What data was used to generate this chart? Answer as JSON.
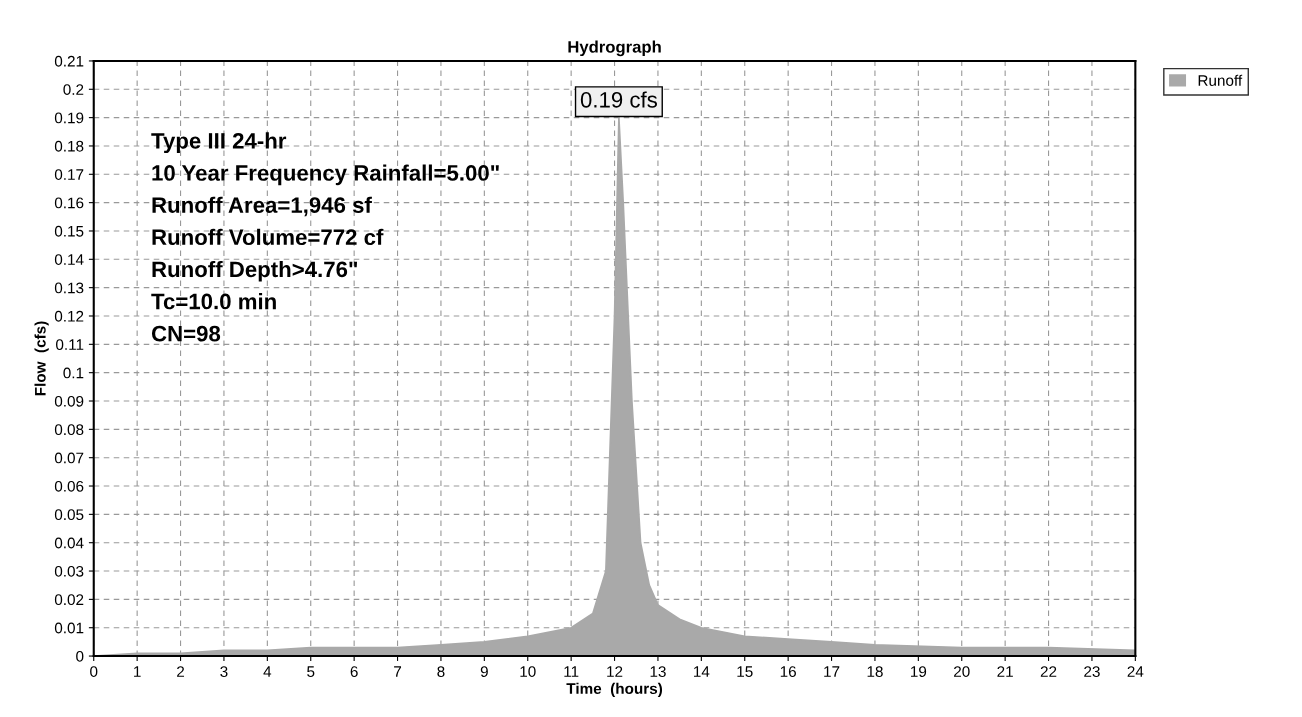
{
  "chart_data": {
    "type": "area",
    "title": "Hydrograph",
    "xlabel": "Time  (hours)",
    "ylabel": "Flow  (cfs)",
    "x": [
      0,
      1,
      2,
      3,
      4,
      5,
      6,
      7,
      8,
      9,
      10,
      11,
      11.5,
      11.8,
      12.0,
      12.1,
      12.2,
      12.4,
      12.6,
      12.8,
      13,
      13.5,
      14,
      15,
      16,
      17,
      18,
      20,
      22,
      24
    ],
    "series": [
      {
        "name": "Runoff",
        "color": "#a9a9a9",
        "values": [
          0,
          0.001,
          0.001,
          0.002,
          0.002,
          0.003,
          0.003,
          0.003,
          0.004,
          0.005,
          0.007,
          0.01,
          0.015,
          0.03,
          0.12,
          0.19,
          0.16,
          0.09,
          0.04,
          0.025,
          0.018,
          0.013,
          0.01,
          0.007,
          0.006,
          0.005,
          0.004,
          0.003,
          0.003,
          0.002
        ]
      }
    ],
    "xlim": [
      0,
      24
    ],
    "xticks": [
      0,
      1,
      2,
      3,
      4,
      5,
      6,
      7,
      8,
      9,
      10,
      11,
      12,
      13,
      14,
      15,
      16,
      17,
      18,
      19,
      20,
      21,
      22,
      23,
      24
    ],
    "ylim": [
      0,
      0.21
    ],
    "yticks": [
      0,
      0.01,
      0.02,
      0.03,
      0.04,
      0.05,
      0.06,
      0.07,
      0.08,
      0.09,
      0.1,
      0.11,
      0.12,
      0.13,
      0.14,
      0.15,
      0.16,
      0.17,
      0.18,
      0.19,
      0.2,
      0.21
    ],
    "annotations": [
      {
        "text": "0.19 cfs",
        "x": 12.1,
        "y": 0.19
      },
      "Type III 24-hr",
      "10 Year Frequency Rainfall=5.00\"",
      "Runoff Area=1,946 sf",
      "Runoff Volume=772 cf",
      "Runoff Depth>4.76\"",
      "Tc=10.0 min",
      "CN=98"
    ],
    "grid": true,
    "legend": "top right"
  }
}
